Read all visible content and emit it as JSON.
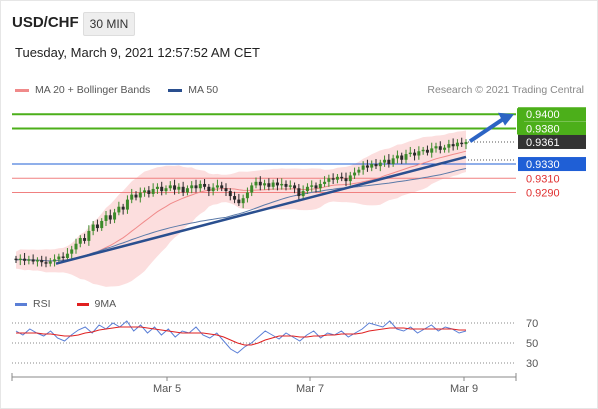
{
  "header": {
    "symbol": "USD/CHF",
    "timeframe": "30 MIN",
    "datetime": "Tuesday, March 9, 2021 12:57:52 AM CET"
  },
  "legend": {
    "ma20_label": "MA 20 + Bollinger Bands",
    "ma20_color": "#f08a8a",
    "ma50_label": "MA 50",
    "ma50_color": "#2a4f8f",
    "credit": "Research © 2021 Trading Central"
  },
  "rsi_legend": {
    "rsi_label": "RSI",
    "rsi_color": "#5b7fd6",
    "ma_label": "9MA",
    "ma_color": "#e02020"
  },
  "chart_data": [
    {
      "type": "candlestick",
      "title": "USD/CHF",
      "x_ticks": [
        "Mar 5",
        "Mar 7",
        "Mar 9"
      ],
      "ylim": [
        0.916,
        0.942
      ],
      "levels": [
        {
          "value": 0.94,
          "label": "0.9400",
          "kind": "resistance",
          "color": "#4caf1a"
        },
        {
          "value": 0.938,
          "label": "0.9380",
          "kind": "resistance",
          "color": "#4caf1a"
        },
        {
          "value": 0.9361,
          "label": "0.9361",
          "kind": "last",
          "color": "#333333"
        },
        {
          "value": 0.933,
          "label": "0.9330",
          "kind": "pivot",
          "color": "#1f5fd6"
        },
        {
          "value": 0.931,
          "label": "0.9310",
          "kind": "support",
          "color": "#e03030"
        },
        {
          "value": 0.929,
          "label": "0.9290",
          "kind": "support",
          "color": "#e03030"
        }
      ],
      "close_series": [
        0.9195,
        0.9197,
        0.9194,
        0.9196,
        0.9193,
        0.9195,
        0.9192,
        0.919,
        0.9193,
        0.9196,
        0.92,
        0.9198,
        0.9204,
        0.921,
        0.9218,
        0.9226,
        0.9222,
        0.9236,
        0.9245,
        0.924,
        0.925,
        0.9258,
        0.9252,
        0.9262,
        0.927,
        0.9266,
        0.928,
        0.9287,
        0.9283,
        0.929,
        0.9293,
        0.9288,
        0.9295,
        0.9298,
        0.9292,
        0.9296,
        0.93,
        0.9294,
        0.9298,
        0.929,
        0.9296,
        0.93,
        0.9296,
        0.9302,
        0.9298,
        0.9292,
        0.9297,
        0.93,
        0.9296,
        0.9292,
        0.9285,
        0.928,
        0.9275,
        0.9282,
        0.929,
        0.93,
        0.9305,
        0.93,
        0.9303,
        0.9298,
        0.9304,
        0.93,
        0.9302,
        0.9298,
        0.93,
        0.9296,
        0.9285,
        0.9292,
        0.9298,
        0.93,
        0.9296,
        0.9302,
        0.9305,
        0.931,
        0.9308,
        0.9312,
        0.931,
        0.9306,
        0.9314,
        0.9318,
        0.9322,
        0.9328,
        0.9325,
        0.933,
        0.9327,
        0.9332,
        0.9336,
        0.933,
        0.9338,
        0.9342,
        0.9336,
        0.9344,
        0.9346,
        0.9342,
        0.9348,
        0.935,
        0.9346,
        0.9352,
        0.9355,
        0.935,
        0.9353,
        0.9358,
        0.9355,
        0.936,
        0.9358,
        0.9361
      ]
    },
    {
      "type": "line",
      "title": "RSI",
      "ylim": [
        25,
        75
      ],
      "y_ticks": [
        70,
        50,
        30
      ],
      "series": [
        {
          "name": "RSI",
          "values": [
            62,
            58,
            64,
            60,
            57,
            62,
            55,
            52,
            58,
            63,
            66,
            60,
            68,
            64,
            70,
            66,
            72,
            62,
            68,
            60,
            66,
            58,
            64,
            56,
            62,
            60,
            66,
            58,
            55,
            60,
            52,
            44,
            40,
            46,
            50,
            56,
            62,
            58,
            54,
            60,
            56,
            52,
            58,
            62,
            55,
            60,
            58,
            62,
            56,
            60,
            64,
            70,
            68,
            66,
            72,
            64,
            62,
            66,
            60,
            64,
            68,
            62,
            66,
            64,
            60,
            62
          ]
        },
        {
          "name": "9MA",
          "values": [
            60,
            60,
            60,
            60,
            59,
            59,
            58,
            57,
            57,
            58,
            60,
            61,
            63,
            64,
            65,
            66,
            66,
            66,
            66,
            65,
            64,
            63,
            62,
            61,
            60,
            60,
            60,
            60,
            59,
            58,
            56,
            53,
            50,
            48,
            48,
            50,
            53,
            55,
            57,
            57,
            57,
            56,
            56,
            57,
            57,
            58,
            58,
            59,
            59,
            59,
            60,
            62,
            63,
            64,
            65,
            65,
            65,
            64,
            64,
            64,
            64,
            64,
            64,
            64,
            63,
            63
          ]
        }
      ]
    }
  ]
}
